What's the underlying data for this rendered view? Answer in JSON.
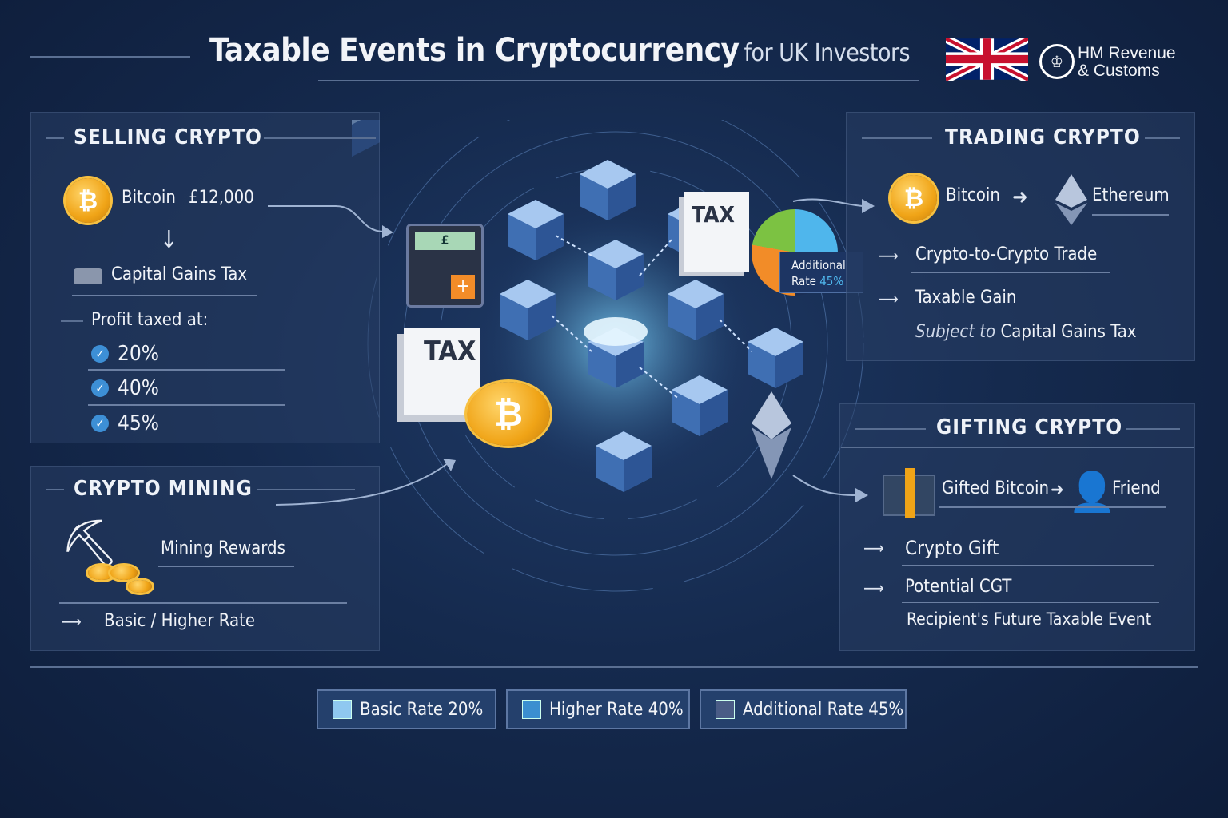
{
  "header": {
    "title": "Taxable Events in Cryptocurrency",
    "subtitle": "for UK Investors",
    "logo_text_line1": "HM Revenue",
    "logo_text_line2": "& Customs",
    "flag_icon": "uk-flag-icon"
  },
  "selling": {
    "heading": "SELLING CRYPTO",
    "coin_label": "Bitcoin",
    "amount": "£12,000",
    "tax_label": "Capital Gains Tax",
    "profit_label": "Profit taxed at:",
    "rates": [
      "20%",
      "40%",
      "45%"
    ]
  },
  "mining": {
    "heading": "CRYPTO MINING",
    "rewards_label": "Mining Rewards",
    "rate_label": "Basic / Higher Rate"
  },
  "trading": {
    "heading": "TRADING CRYPTO",
    "from": "Bitcoin",
    "to": "Ethereum",
    "trade_label": "Crypto-to-Crypto Trade",
    "gain_label": "Taxable Gain",
    "subject_prefix": "Subject to",
    "subject_tax": "Capital Gains Tax"
  },
  "gifting": {
    "heading": "GIFTING CRYPTO",
    "gift_label": "Gifted Bitcoin",
    "recipient": "Friend",
    "gift_type": "Crypto Gift",
    "cgt_label": "Potential CGT",
    "future_label": "Recipient's Future Taxable Event"
  },
  "center": {
    "tax_doc_1": "TAX",
    "tax_doc_2": "TAX",
    "calc_symbol": "£",
    "pie_label_1": "Additional",
    "pie_label_2": "Rate",
    "pie_value": "45%"
  },
  "legend": [
    {
      "label": "Basic Rate 20%",
      "color": "#8fc8f0"
    },
    {
      "label": "Higher Rate 40%",
      "color": "#3b8fd0"
    },
    {
      "label": "Additional Rate 45%",
      "color": "#4a5c86"
    }
  ],
  "colors": {
    "accent_blue": "#4fb6ec",
    "gold": "#f0a417",
    "pie": [
      "#4fb6ec",
      "#f28c28",
      "#7cc242"
    ]
  }
}
